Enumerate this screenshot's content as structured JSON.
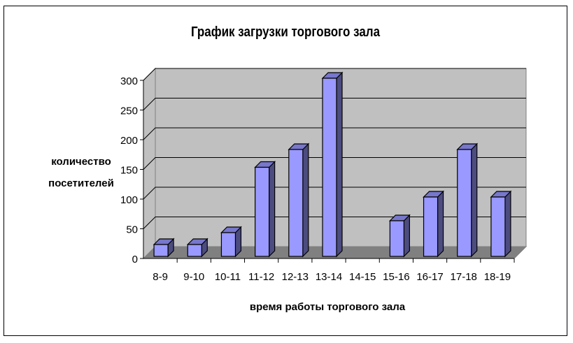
{
  "chart_data": {
    "type": "bar",
    "style": "3d-column",
    "title": "График загрузки торгового зала",
    "xlabel": "время работы торгового зала",
    "ylabel": [
      "количество",
      "посетителей"
    ],
    "categories": [
      "8-9",
      "9-10",
      "10-11",
      "11-12",
      "12-13",
      "13-14",
      "14-15",
      "15-16",
      "16-17",
      "17-18",
      "18-19"
    ],
    "values": [
      20,
      20,
      40,
      150,
      180,
      300,
      0,
      60,
      100,
      180,
      100
    ],
    "ylim": [
      0,
      300
    ],
    "yticks": [
      0,
      50,
      100,
      150,
      200,
      250,
      300
    ],
    "grid": true,
    "legend": "none",
    "colors": {
      "bar_front": "#9999ff",
      "bar_top": "#7777cc",
      "bar_side": "#4c4c80",
      "wall": "#c0c0c0",
      "floor": "#808080"
    }
  }
}
